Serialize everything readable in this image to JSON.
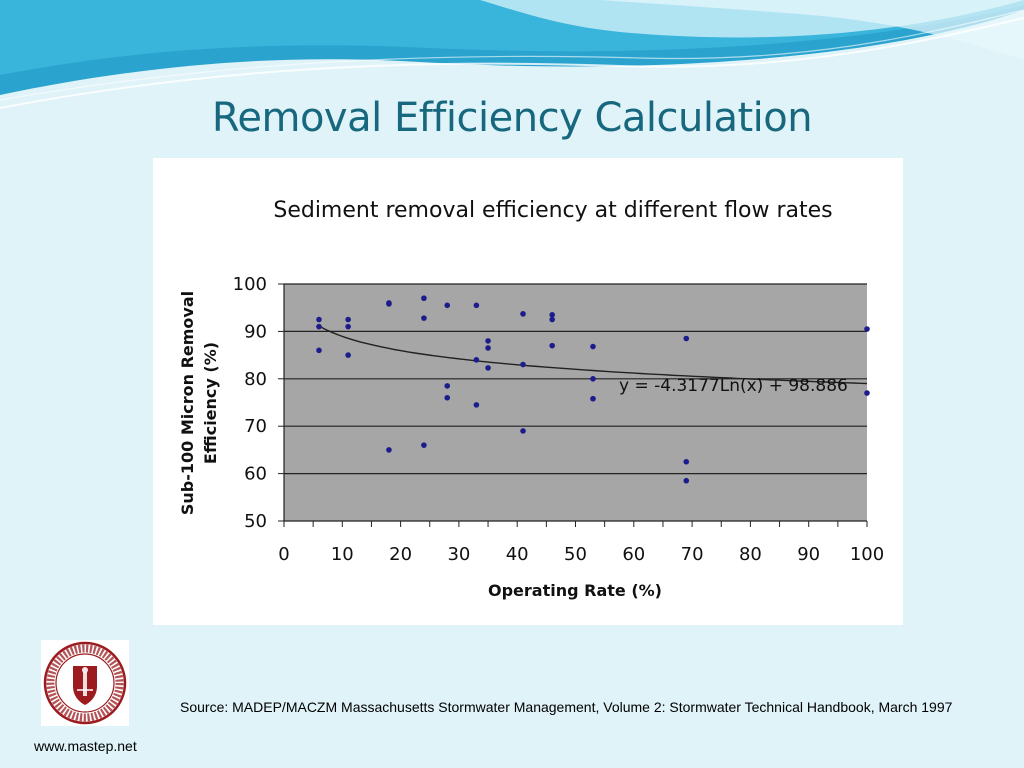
{
  "slide": {
    "title": "Removal Efficiency Calculation",
    "source": "Source: MADEP/MACZM Massachusetts Stormwater Management, Volume 2: Stormwater Technical Handbook, March 1997",
    "website": "www.mastep.net",
    "logo_text": "UNIVERSITY OF MASSACHUSETTS · AMHERST 1863"
  },
  "colors": {
    "background": "#dff3f8",
    "title": "#17687f",
    "plot_area": "#a6a6a6",
    "points": "#1c1c8c",
    "trendline": "#222222",
    "logo": "#9b1b1f"
  },
  "chart_data": {
    "type": "scatter",
    "title": "Sediment removal efficiency at different flow rates",
    "xlabel": "Operating Rate (%)",
    "ylabel_lines": [
      "Sub-100 Micron Removal",
      "Efficiency (%)"
    ],
    "xlim": [
      0,
      100
    ],
    "ylim": [
      50,
      100
    ],
    "xticks": [
      0,
      10,
      20,
      30,
      40,
      50,
      60,
      70,
      80,
      90,
      100
    ],
    "yticks": [
      50,
      60,
      70,
      80,
      90,
      100
    ],
    "grid": "horizontal",
    "trendline": {
      "type": "logarithmic",
      "a": -4.3177,
      "b": 98.886,
      "label": "y = -4.3177Ln(x) + 98.886"
    },
    "series": [
      {
        "x": [
          6,
          6,
          6,
          11,
          11,
          11,
          18,
          18,
          18,
          24,
          24,
          24,
          28,
          28,
          28,
          33,
          33,
          33,
          35,
          35,
          35,
          41,
          41,
          41,
          46,
          46,
          46,
          53,
          53,
          53,
          69,
          69,
          69,
          100,
          100
        ],
        "y": [
          92.5,
          91,
          86,
          92.5,
          91,
          85,
          96,
          95.8,
          65,
          97,
          92.8,
          66,
          95.5,
          78.5,
          76,
          95.5,
          84,
          74.5,
          88,
          86.5,
          82.3,
          93.7,
          83,
          69,
          93.5,
          92.5,
          87,
          86.8,
          80,
          75.8,
          88.5,
          62.5,
          58.5,
          90.5,
          77
        ]
      }
    ]
  }
}
